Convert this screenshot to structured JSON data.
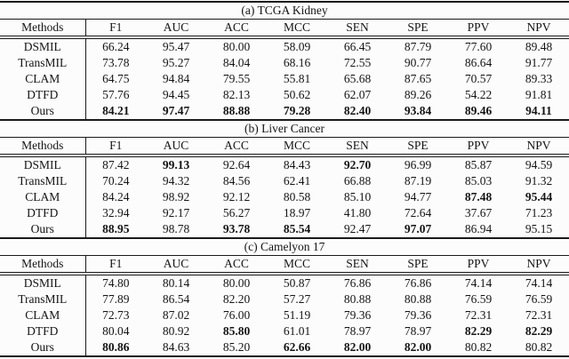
{
  "page": {
    "background": "#fcfcfc",
    "rule_color": "#1a1a1a",
    "text_color": "#141414"
  },
  "columns": [
    "Methods",
    "F1",
    "AUC",
    "ACC",
    "MCC",
    "SEN",
    "SPE",
    "PPV",
    "NPV"
  ],
  "tables": [
    {
      "caption": "(a) TCGA Kidney",
      "rows": [
        {
          "method": "DSMIL",
          "values": [
            "66.24",
            "95.47",
            "80.00",
            "58.09",
            "66.45",
            "87.79",
            "77.60",
            "89.48"
          ],
          "bold": [
            0,
            0,
            0,
            0,
            0,
            0,
            0,
            0
          ]
        },
        {
          "method": "TransMIL",
          "values": [
            "73.78",
            "95.27",
            "84.04",
            "68.16",
            "72.55",
            "90.77",
            "86.64",
            "91.77"
          ],
          "bold": [
            0,
            0,
            0,
            0,
            0,
            0,
            0,
            0
          ]
        },
        {
          "method": "CLAM",
          "values": [
            "64.75",
            "94.84",
            "79.55",
            "55.81",
            "65.68",
            "87.65",
            "70.57",
            "89.33"
          ],
          "bold": [
            0,
            0,
            0,
            0,
            0,
            0,
            0,
            0
          ]
        },
        {
          "method": "DTFD",
          "values": [
            "57.76",
            "94.45",
            "82.13",
            "50.62",
            "62.07",
            "89.26",
            "54.22",
            "91.81"
          ],
          "bold": [
            0,
            0,
            0,
            0,
            0,
            0,
            0,
            0
          ]
        },
        {
          "method": "Ours",
          "values": [
            "84.21",
            "97.47",
            "88.88",
            "79.28",
            "82.40",
            "93.84",
            "89.46",
            "94.11"
          ],
          "bold": [
            1,
            1,
            1,
            1,
            1,
            1,
            1,
            1
          ]
        }
      ]
    },
    {
      "caption": "(b) Liver Cancer",
      "rows": [
        {
          "method": "DSMIL",
          "values": [
            "87.42",
            "99.13",
            "92.64",
            "84.43",
            "92.70",
            "96.99",
            "85.87",
            "94.59"
          ],
          "bold": [
            0,
            1,
            0,
            0,
            1,
            0,
            0,
            0
          ]
        },
        {
          "method": "TransMIL",
          "values": [
            "70.24",
            "94.32",
            "84.56",
            "62.41",
            "66.88",
            "87.19",
            "85.03",
            "91.32"
          ],
          "bold": [
            0,
            0,
            0,
            0,
            0,
            0,
            0,
            0
          ]
        },
        {
          "method": "CLAM",
          "values": [
            "84.24",
            "98.92",
            "92.12",
            "80.58",
            "85.10",
            "94.77",
            "87.48",
            "95.44"
          ],
          "bold": [
            0,
            0,
            0,
            0,
            0,
            0,
            1,
            1
          ]
        },
        {
          "method": "DTFD",
          "values": [
            "32.94",
            "92.17",
            "56.27",
            "18.97",
            "41.80",
            "72.64",
            "37.67",
            "71.23"
          ],
          "bold": [
            0,
            0,
            0,
            0,
            0,
            0,
            0,
            0
          ]
        },
        {
          "method": "Ours",
          "values": [
            "88.95",
            "98.78",
            "93.78",
            "85.54",
            "92.47",
            "97.07",
            "86.94",
            "95.15"
          ],
          "bold": [
            1,
            0,
            1,
            1,
            0,
            1,
            0,
            0
          ]
        }
      ]
    },
    {
      "caption": "(c) Camelyon 17",
      "rows": [
        {
          "method": "DSMIL",
          "values": [
            "74.80",
            "80.14",
            "80.00",
            "50.87",
            "76.86",
            "76.86",
            "74.14",
            "74.14"
          ],
          "bold": [
            0,
            0,
            0,
            0,
            0,
            0,
            0,
            0
          ]
        },
        {
          "method": "TransMIL",
          "values": [
            "77.89",
            "86.54",
            "82.20",
            "57.27",
            "80.88",
            "80.88",
            "76.59",
            "76.59"
          ],
          "bold": [
            0,
            0,
            0,
            0,
            0,
            0,
            0,
            0
          ]
        },
        {
          "method": "CLAM",
          "values": [
            "72.73",
            "87.02",
            "76.00",
            "51.19",
            "79.36",
            "79.36",
            "72.31",
            "72.31"
          ],
          "bold": [
            0,
            0,
            0,
            0,
            0,
            0,
            0,
            0
          ]
        },
        {
          "method": "DTFD",
          "values": [
            "80.04",
            "80.92",
            "85.80",
            "61.01",
            "78.97",
            "78.97",
            "82.29",
            "82.29"
          ],
          "bold": [
            0,
            0,
            1,
            0,
            0,
            0,
            1,
            1
          ]
        },
        {
          "method": "Ours",
          "values": [
            "80.86",
            "84.63",
            "85.20",
            "62.66",
            "82.00",
            "82.00",
            "80.82",
            "80.82"
          ],
          "bold": [
            1,
            0,
            0,
            1,
            1,
            1,
            0,
            0
          ]
        }
      ]
    }
  ]
}
